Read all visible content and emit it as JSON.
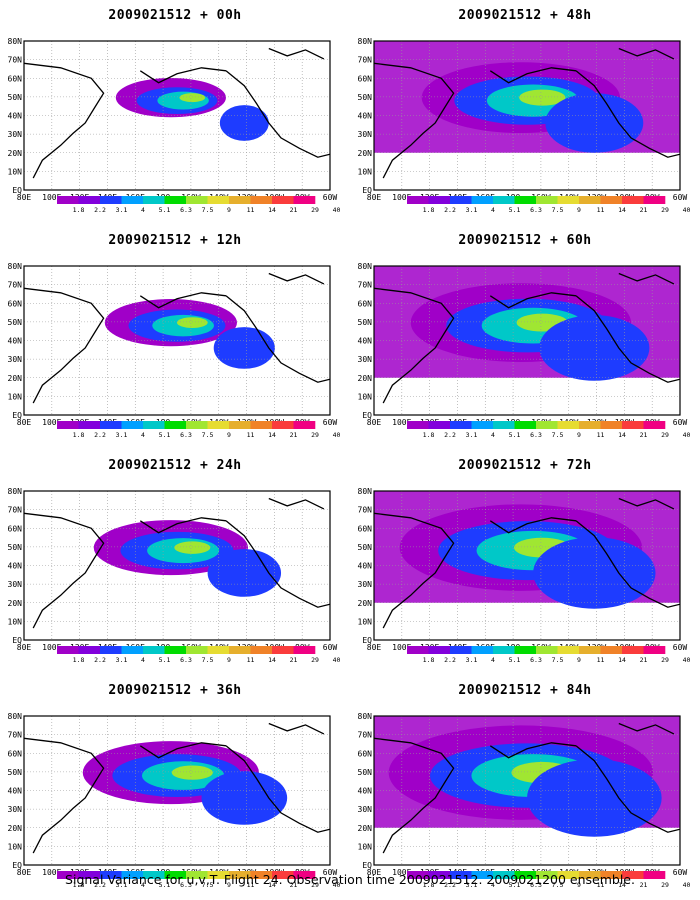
{
  "panels": [
    {
      "title": "2009021512 + 00h",
      "hours": "00h"
    },
    {
      "title": "2009021512 + 48h",
      "hours": "48h"
    },
    {
      "title": "2009021512 + 12h",
      "hours": "12h"
    },
    {
      "title": "2009021512 + 60h",
      "hours": "60h"
    },
    {
      "title": "2009021512 + 24h",
      "hours": "24h"
    },
    {
      "title": "2009021512 + 72h",
      "hours": "72h"
    },
    {
      "title": "2009021512 + 36h",
      "hours": "36h"
    },
    {
      "title": "2009021512 + 84h",
      "hours": "84h"
    }
  ],
  "lon_labels": [
    "80E",
    "100E",
    "120E",
    "140E",
    "160E",
    "180",
    "160W",
    "140W",
    "120W",
    "100W",
    "80W",
    "60W"
  ],
  "lat_labels": [
    "80N",
    "70N",
    "60N",
    "50N",
    "40N",
    "30N",
    "20N",
    "10N",
    "EQ"
  ],
  "legend": {
    "values": [
      "1.8",
      "2.2",
      "3.1",
      "4",
      "5.1",
      "6.3",
      "7.5",
      "9",
      "11",
      "14",
      "21",
      "29",
      "40"
    ],
    "colors": [
      "#a000c8",
      "#8200dc",
      "#1e3cff",
      "#00a0ff",
      "#00c8c8",
      "#00dc00",
      "#a0e632",
      "#e6dc32",
      "#e6af2d",
      "#f08228",
      "#fa3c3c",
      "#f00082"
    ]
  },
  "footer": "Signal Variance for u,v,T. Flight 24. Observation time 2009021512. 2009021200 ensemble."
}
